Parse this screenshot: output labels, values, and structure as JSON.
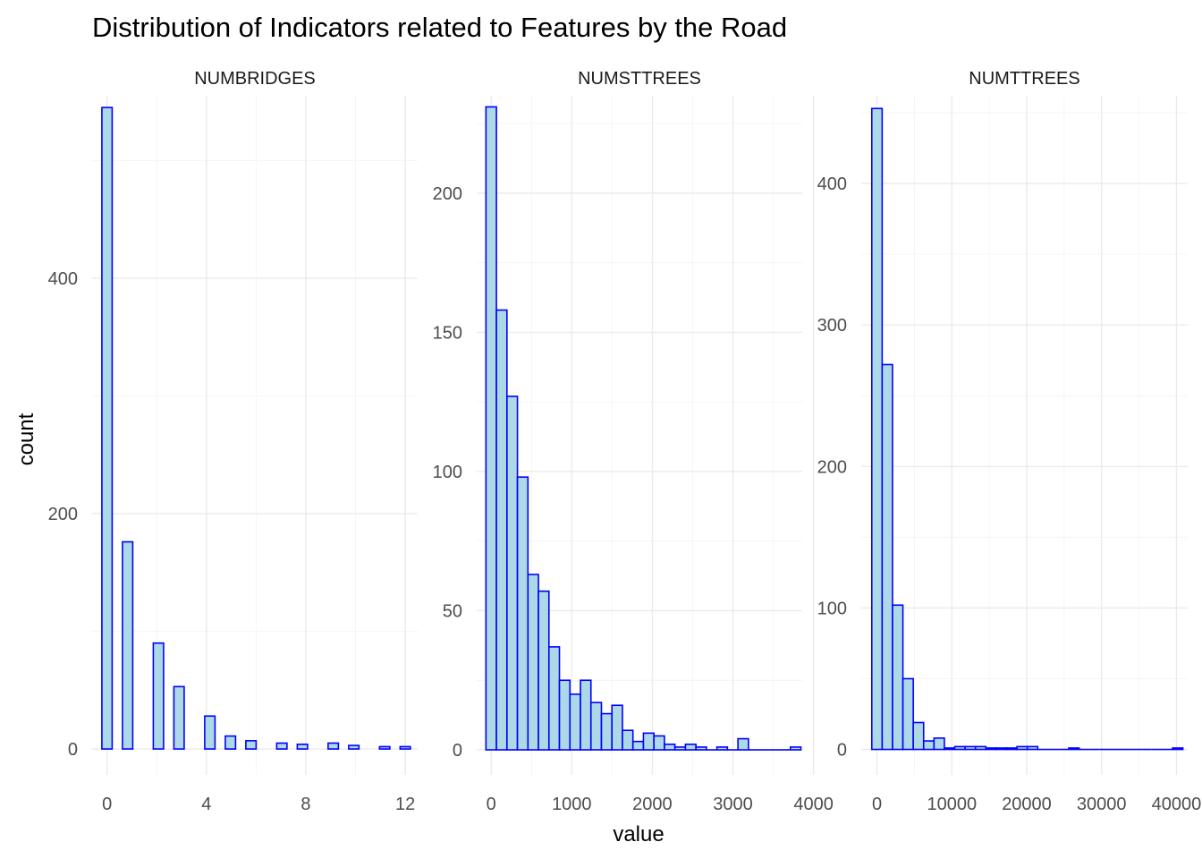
{
  "chart_data": {
    "type": "bar",
    "title": "Distribution of Indicators related to Features by the Road",
    "xlabel": "value",
    "ylabel": "count",
    "grid": true,
    "colors": {
      "fill": "#add8e6",
      "outline": "#0000ff"
    },
    "facets": [
      {
        "name": "NUMBRIDGES",
        "xlim": [
          -0.6,
          12.5
        ],
        "ylim": [
          -22,
          555
        ],
        "xticks": [
          0,
          4,
          8,
          12
        ],
        "yticks": [
          0,
          200,
          400
        ],
        "bin_width": 0.41379,
        "bins": [
          {
            "x": 0.0,
            "count": 545
          },
          {
            "x": 0.828,
            "count": 176
          },
          {
            "x": 2.069,
            "count": 90
          },
          {
            "x": 2.897,
            "count": 53
          },
          {
            "x": 4.138,
            "count": 28
          },
          {
            "x": 4.966,
            "count": 11
          },
          {
            "x": 5.793,
            "count": 7
          },
          {
            "x": 7.034,
            "count": 5
          },
          {
            "x": 7.862,
            "count": 4
          },
          {
            "x": 9.103,
            "count": 5
          },
          {
            "x": 9.931,
            "count": 3
          },
          {
            "x": 11.172,
            "count": 2
          },
          {
            "x": 12.0,
            "count": 2
          }
        ]
      },
      {
        "name": "NUMSTTREES",
        "xlim": [
          -180,
          3860
        ],
        "ylim": [
          -9,
          235
        ],
        "xticks": [
          0,
          1000,
          2000,
          3000,
          4000
        ],
        "yticks": [
          0,
          50,
          100,
          150,
          200
        ],
        "bin_width": 130.3,
        "bins": [
          {
            "x": 0,
            "count": 231
          },
          {
            "x": 130.3,
            "count": 158
          },
          {
            "x": 260.6,
            "count": 127
          },
          {
            "x": 390.9,
            "count": 98
          },
          {
            "x": 521.2,
            "count": 63
          },
          {
            "x": 651.5,
            "count": 57
          },
          {
            "x": 781.8,
            "count": 37
          },
          {
            "x": 912.1,
            "count": 25
          },
          {
            "x": 1042.4,
            "count": 20
          },
          {
            "x": 1172.7,
            "count": 25
          },
          {
            "x": 1303.0,
            "count": 17
          },
          {
            "x": 1433.3,
            "count": 13
          },
          {
            "x": 1563.6,
            "count": 16
          },
          {
            "x": 1693.9,
            "count": 7
          },
          {
            "x": 1824.2,
            "count": 3
          },
          {
            "x": 1954.5,
            "count": 6
          },
          {
            "x": 2084.8,
            "count": 5
          },
          {
            "x": 2215.1,
            "count": 2
          },
          {
            "x": 2345.4,
            "count": 1
          },
          {
            "x": 2475.7,
            "count": 2
          },
          {
            "x": 2606.0,
            "count": 1
          },
          {
            "x": 2736.3,
            "count": 0
          },
          {
            "x": 2866.6,
            "count": 1
          },
          {
            "x": 2996.9,
            "count": 0
          },
          {
            "x": 3127.2,
            "count": 4
          },
          {
            "x": 3257.5,
            "count": 0
          },
          {
            "x": 3387.8,
            "count": 0
          },
          {
            "x": 3518.1,
            "count": 0
          },
          {
            "x": 3648.4,
            "count": 0
          },
          {
            "x": 3778.7,
            "count": 1
          }
        ]
      },
      {
        "name": "NUMTTREES",
        "xlim": [
          -2100,
          41500
        ],
        "ylim": [
          -18,
          462
        ],
        "xticks": [
          0,
          10000,
          20000,
          30000,
          40000
        ],
        "yticks": [
          0,
          100,
          200,
          300,
          400
        ],
        "bin_width": 1385,
        "bins": [
          {
            "x": 0,
            "count": 453
          },
          {
            "x": 1385,
            "count": 272
          },
          {
            "x": 2770,
            "count": 102
          },
          {
            "x": 4155,
            "count": 50
          },
          {
            "x": 5540,
            "count": 19
          },
          {
            "x": 6925,
            "count": 6
          },
          {
            "x": 8310,
            "count": 8
          },
          {
            "x": 9695,
            "count": 1
          },
          {
            "x": 11080,
            "count": 2
          },
          {
            "x": 12465,
            "count": 2
          },
          {
            "x": 13850,
            "count": 2
          },
          {
            "x": 15235,
            "count": 1
          },
          {
            "x": 16620,
            "count": 1
          },
          {
            "x": 18005,
            "count": 1
          },
          {
            "x": 19390,
            "count": 2
          },
          {
            "x": 20775,
            "count": 2
          },
          {
            "x": 22160,
            "count": 0
          },
          {
            "x": 23545,
            "count": 0
          },
          {
            "x": 24930,
            "count": 0
          },
          {
            "x": 26315,
            "count": 1
          },
          {
            "x": 27700,
            "count": 0
          },
          {
            "x": 29085,
            "count": 0
          },
          {
            "x": 30470,
            "count": 0
          },
          {
            "x": 31855,
            "count": 0
          },
          {
            "x": 33240,
            "count": 0
          },
          {
            "x": 34625,
            "count": 0
          },
          {
            "x": 36010,
            "count": 0
          },
          {
            "x": 37395,
            "count": 0
          },
          {
            "x": 38780,
            "count": 0
          },
          {
            "x": 40165,
            "count": 1
          }
        ]
      }
    ]
  }
}
